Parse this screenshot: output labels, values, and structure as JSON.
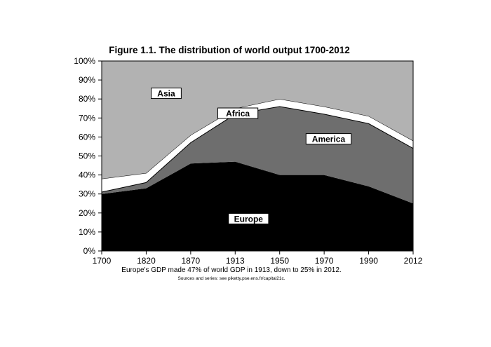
{
  "chart_data": {
    "type": "area",
    "title": "Figure 1.1. The distribution of world output 1700-2012",
    "caption": "Europe's GDP made 47% of world GDP in 1913, down to 25% in 2012.",
    "source": "Sources and series: see piketty.pse.ens.fr/capital21c.",
    "x_label_note": "",
    "categories": [
      "1700",
      "1820",
      "1870",
      "1913",
      "1950",
      "1970",
      "1990",
      "2012"
    ],
    "y_ticks": [
      "0%",
      "10%",
      "20%",
      "30%",
      "40%",
      "50%",
      "60%",
      "70%",
      "80%",
      "90%",
      "100%"
    ],
    "ylim": [
      0,
      100
    ],
    "stacking": "cumulative",
    "grid": false,
    "series": [
      {
        "name": "Europe",
        "color": "#000000",
        "values": [
          30,
          33,
          46,
          47,
          40,
          40,
          34,
          25
        ]
      },
      {
        "name": "America",
        "color": "#6e6e6e",
        "values": [
          1,
          3,
          11,
          25,
          36,
          32,
          33,
          29
        ]
      },
      {
        "name": "Africa",
        "color": "#ffffff",
        "values": [
          7,
          5,
          4,
          3,
          4,
          4,
          4,
          4
        ]
      },
      {
        "name": "Asia",
        "color": "#b2b2b2",
        "values": [
          62,
          59,
          39,
          25,
          20,
          24,
          29,
          42
        ]
      }
    ]
  }
}
